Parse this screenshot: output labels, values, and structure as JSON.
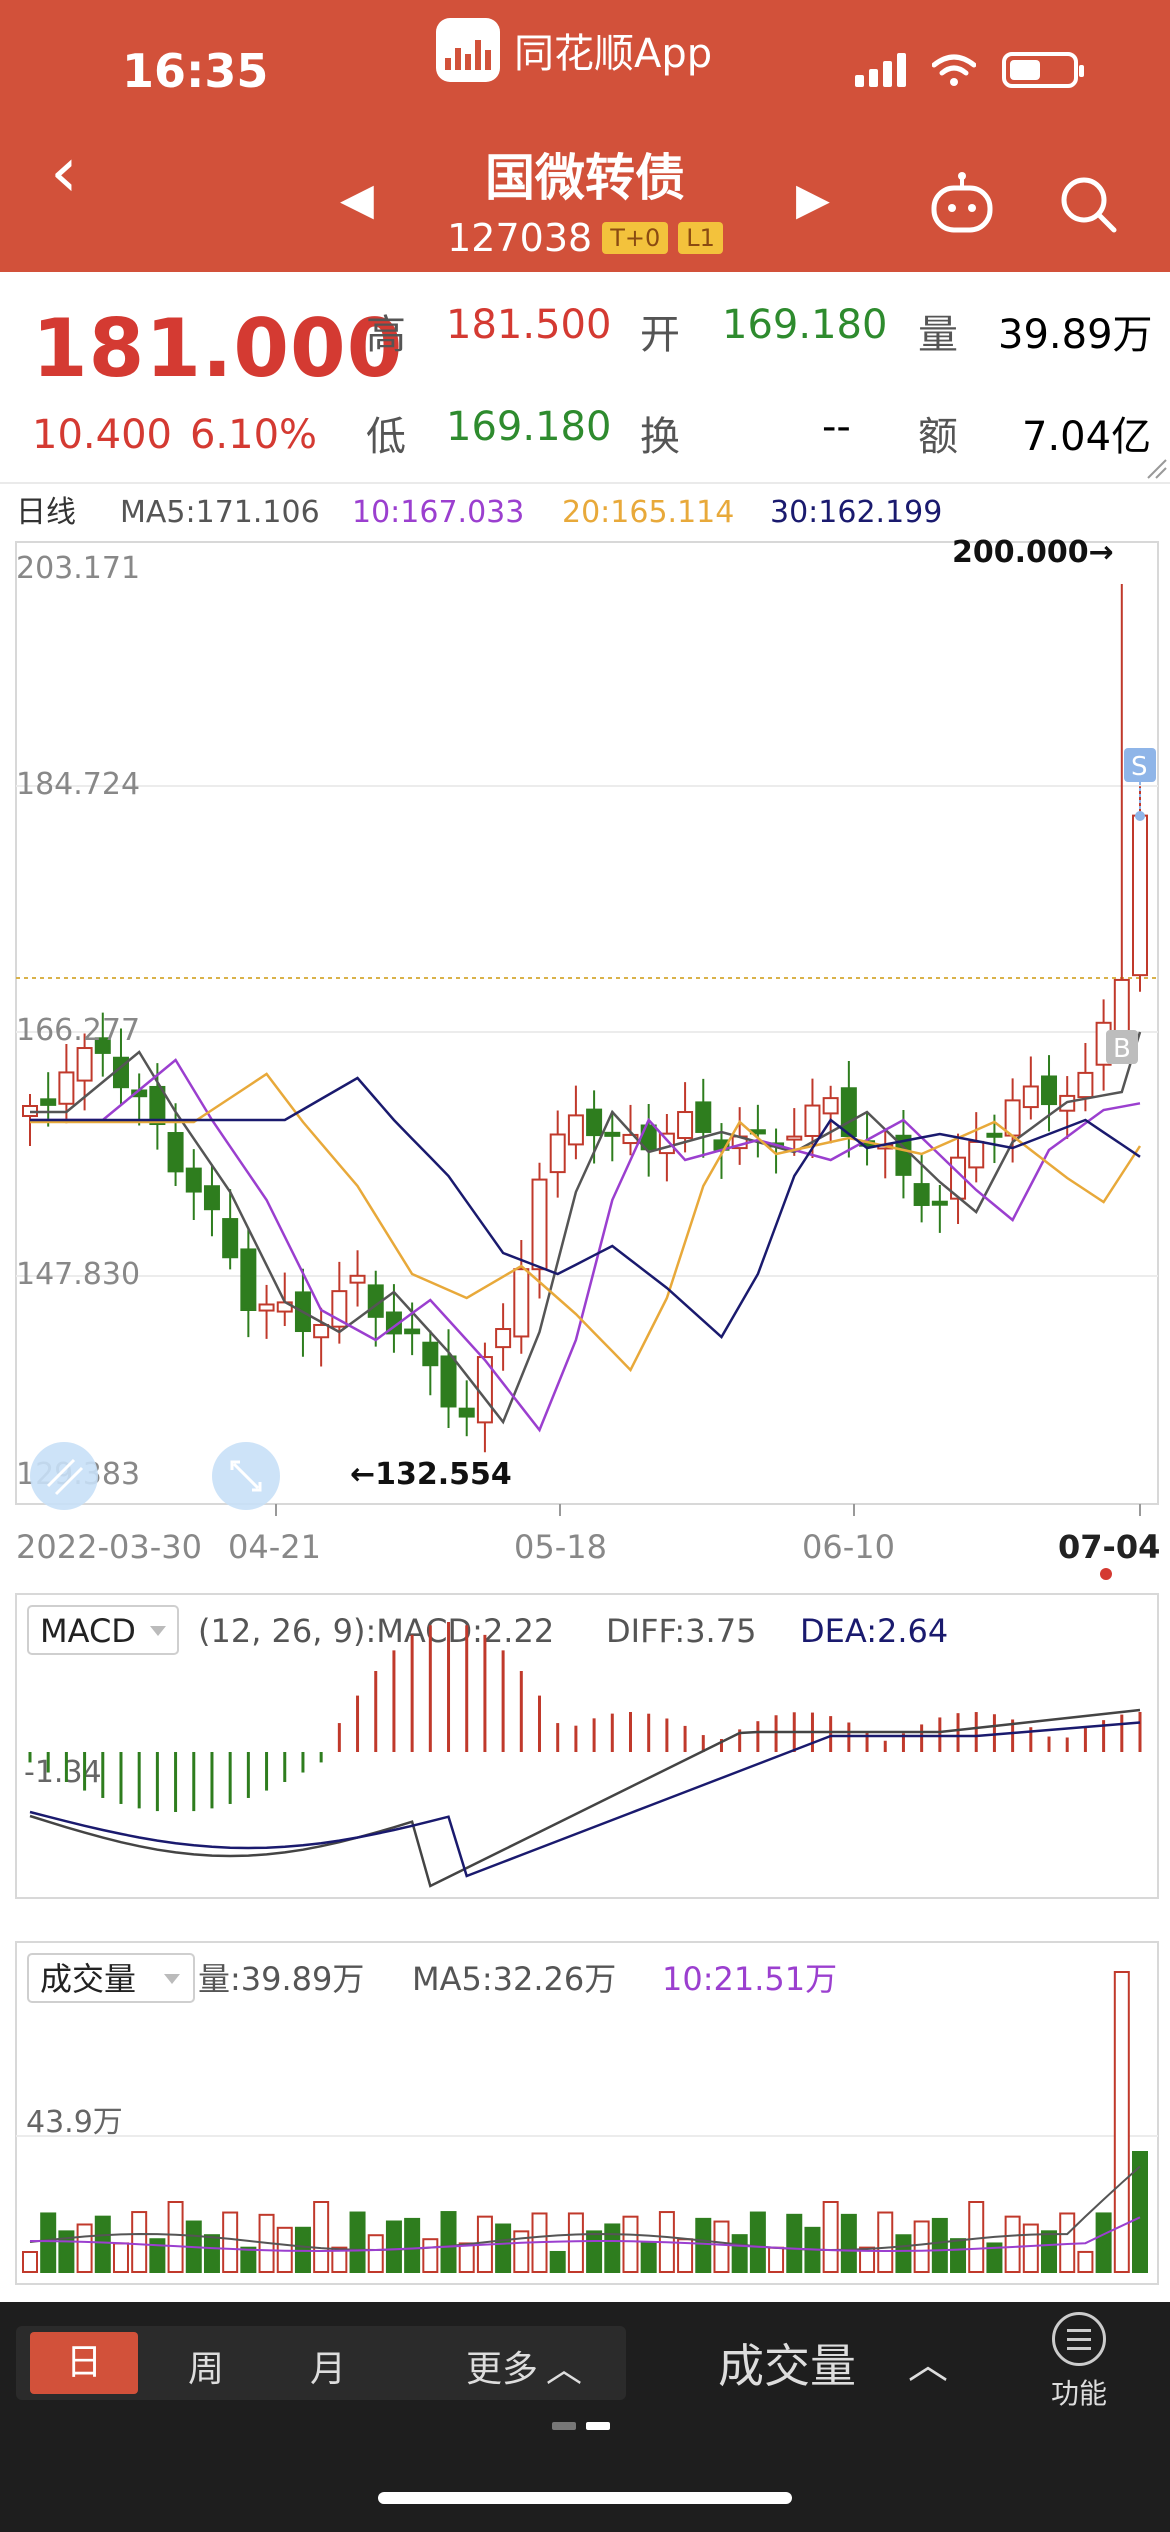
{
  "status_bar": {
    "time": "16:35",
    "app_name": "同花顺App"
  },
  "header": {
    "title": "国微转债",
    "code": "127038",
    "tags": [
      "T+0",
      "L1"
    ]
  },
  "quote": {
    "price": "181.000",
    "change": "10.400",
    "change_pct": "6.10%",
    "fields": [
      {
        "label": "高",
        "value": "181.500",
        "color": "red"
      },
      {
        "label": "开",
        "value": "169.180",
        "color": "green"
      },
      {
        "label": "量",
        "value": "39.89万",
        "color": "black"
      },
      {
        "label": "低",
        "value": "169.180",
        "color": "green"
      },
      {
        "label": "换",
        "value": "--",
        "color": "black"
      },
      {
        "label": "额",
        "value": "7.04亿",
        "color": "black"
      }
    ]
  },
  "kline": {
    "period_label": "日线",
    "ma": [
      {
        "label": "MA5:171.106",
        "color": "#555555"
      },
      {
        "label": "10:167.033",
        "color": "#9b3fcf"
      },
      {
        "label": "20:165.114",
        "color": "#e8a93a"
      },
      {
        "label": "30:162.199",
        "color": "#1a1a6e"
      }
    ],
    "y_ticks": [
      "203.171",
      "184.724",
      "166.277",
      "147.830",
      "129.383"
    ],
    "high_marker": "200.000→",
    "low_marker": "←132.554",
    "x_ticks": [
      "2022-03-30",
      "04-21",
      "05-18",
      "06-10",
      "07-04"
    ],
    "buy_tag": "B",
    "sell_tag": "S"
  },
  "macd": {
    "name": "MACD",
    "params": "(12, 26, 9):MACD:2.22",
    "diff": "DIFF:3.75",
    "dea": "DEA:2.64",
    "y_tick": "-1.34"
  },
  "volume": {
    "name": "成交量",
    "vol": "量:39.89万",
    "ma5": "MA5:32.26万",
    "ma10": "10:21.51万",
    "y_tick": "43.9万"
  },
  "chart_data": {
    "type": "candlestick",
    "x": [
      "2022-03-30",
      "04-21",
      "05-18",
      "06-10",
      "07-04"
    ],
    "ylim": [
      129.383,
      203.171
    ],
    "highest": 200.0,
    "lowest": 132.554,
    "last_close": 181.0
  },
  "bottom_bar": {
    "periods": [
      "日",
      "周",
      "月",
      "更多"
    ],
    "indicator": "成交量",
    "func_label": "功能"
  }
}
